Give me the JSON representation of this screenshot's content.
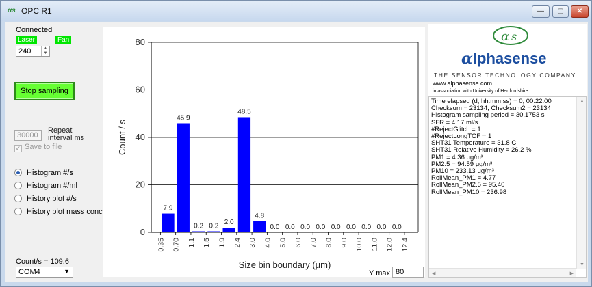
{
  "window": {
    "title": "OPC R1",
    "controls": [
      "minimize",
      "maximize",
      "close"
    ]
  },
  "left": {
    "status": "Connected",
    "indicators": [
      {
        "label": "Laser",
        "color": "#00e600"
      },
      {
        "label": "Fan",
        "color": "#00e600"
      }
    ],
    "laser_power_value": "240",
    "stop_button": "Stop sampling",
    "stop_button_color": "#66ff33",
    "interval_value": "30000",
    "interval_label_1": "Repeat",
    "interval_label_2": "interval ms",
    "save_label": "Save to file",
    "save_checked": true,
    "save_disabled": true,
    "radios": [
      {
        "label": "Histogram #/s",
        "selected": true
      },
      {
        "label": "Histogram #/ml",
        "selected": false
      },
      {
        "label": "History plot #/s",
        "selected": false
      },
      {
        "label": "History plot mass conc.",
        "selected": false
      }
    ],
    "count_total": "Count/s = 109.6",
    "com_port": "COM4"
  },
  "chart_data": {
    "type": "bar",
    "ylabel": "Count / s",
    "xlabel": "Size bin boundary (μm)",
    "ylim": [
      0,
      80
    ],
    "yticks": [
      0,
      20,
      40,
      60,
      80
    ],
    "grid": "horizontal",
    "bar_color": "#0000ff",
    "boundaries": [
      "0.35",
      "0.70",
      "1.1",
      "1.5",
      "1.9",
      "2.4",
      "3.0",
      "4.0",
      "5.0",
      "6.0",
      "7.0",
      "8.0",
      "9.0",
      "10.0",
      "11.0",
      "12.0",
      "12.4"
    ],
    "values": [
      7.9,
      45.9,
      0.2,
      0.2,
      2.0,
      48.5,
      4.8,
      0.0,
      0.0,
      0.0,
      0.0,
      0.0,
      0.0,
      0.0,
      0.0,
      0.0
    ],
    "labels": [
      "7.9",
      "45.9",
      "0.2",
      "0.2",
      "2.0",
      "48.5",
      "4.8",
      "0.0",
      "0.0",
      "0.0",
      "0.0",
      "0.0",
      "0.0",
      "0.0",
      "0.0",
      "0.0"
    ]
  },
  "ymax": {
    "label": "Y max",
    "value": "80"
  },
  "right": {
    "logo": "lphasense",
    "logo_alpha": "α",
    "tagline": "THE SENSOR TECHNOLOGY COMPANY",
    "url": "www.alphasense.com",
    "assoc": "in association with University of Hertfordshire",
    "log": [
      "Time elapsed (d, hh:mm:ss) = 0, 00:22:00",
      "Checksum = 23134, Checksum2 = 23134",
      "Histogram sampling period = 30.1753 s",
      "SFR = 4.17 ml/s",
      "#RejectGlitch = 1",
      "#RejectLongTOF = 1",
      "SHT31 Temperature = 31.8 C",
      "SHT31 Relative Humidity = 26.2 %",
      "PM1 = 4.36 μg/m³",
      "PM2.5 = 94.59 μg/m³",
      "PM10 = 233.13 μg/m³",
      "RollMean_PM1 = 4.77",
      "RollMean_PM2.5 = 95.40",
      "RollMean_PM10 = 236.98"
    ]
  }
}
